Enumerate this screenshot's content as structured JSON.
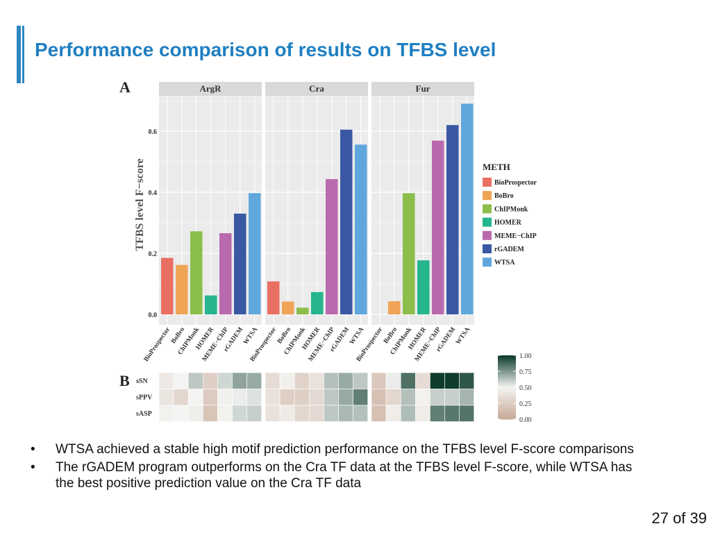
{
  "slide": {
    "title": "Performance comparison of results on TFBS level",
    "page_number": "27 of 39",
    "bullets": [
      "WTSA achieved a stable high motif prediction performance on the TFBS level F-score comparisons",
      "The rGADEM program outperforms on the Cra TF data at the TFBS level F-score, while WTSA has the best positive prediction value on the Cra TF data"
    ]
  },
  "colors": {
    "accent": "#2e86c1",
    "title": "#1f7fc2",
    "panel_bg": "#ebebeb",
    "strip_bg": "#d9d9d9",
    "grid": "#ffffff",
    "heat_low": "#c8aa98",
    "heat_mid": "#f4f4f2",
    "heat_high": "#0f3d2c"
  },
  "chart_data": [
    {
      "type": "bar",
      "panel_label": "A",
      "ylabel": "TFBS level F−score",
      "ylim": [
        0,
        0.72
      ],
      "yticks": [
        0.0,
        0.2,
        0.4,
        0.6
      ],
      "ytick_labels": [
        "0.0",
        "0.2",
        "0.4",
        "0.6"
      ],
      "categories": [
        "BioProspector",
        "BoBro",
        "ChIPMonk",
        "HOMER",
        "MEME−ChIP",
        "rGADEM",
        "WTSA"
      ],
      "category_colors": [
        "#ea6f63",
        "#efa456",
        "#8bbe4b",
        "#26b58c",
        "#b96aae",
        "#3a58a3",
        "#5fa7dd"
      ],
      "legend_title": "METH",
      "legend": [
        "BioProspector",
        "BoBro",
        "ChIPMonk",
        "HOMER",
        "MEME−ChIP",
        "rGADEM",
        "WTSA"
      ],
      "facets": [
        {
          "name": "ArgR",
          "values": [
            0.185,
            0.162,
            0.272,
            0.062,
            0.266,
            0.33,
            0.397
          ]
        },
        {
          "name": "Cra",
          "values": [
            0.108,
            0.042,
            0.022,
            0.073,
            0.443,
            0.605,
            0.556
          ]
        },
        {
          "name": "Fur",
          "values": [
            0.0,
            0.043,
            0.397,
            0.177,
            0.569,
            0.62,
            0.69
          ]
        }
      ]
    },
    {
      "type": "heatmap",
      "panel_label": "B",
      "rows": [
        "sSN",
        "sPPV",
        "sASP"
      ],
      "columns": [
        "BioProspector",
        "BoBro",
        "ChIPMonk",
        "HOMER",
        "MEME−ChIP",
        "rGADEM",
        "WTSA"
      ],
      "facets": [
        {
          "name": "ArgR",
          "values": [
            [
              0.42,
              0.5,
              0.62,
              0.25,
              0.58,
              0.72,
              0.7
            ],
            [
              0.4,
              0.3,
              0.5,
              0.22,
              0.47,
              0.52,
              0.55
            ],
            [
              0.48,
              0.5,
              0.46,
              0.18,
              0.48,
              0.58,
              0.6
            ]
          ]
        },
        {
          "name": "Cra",
          "values": [
            [
              0.34,
              0.47,
              0.28,
              0.38,
              0.64,
              0.7,
              0.62
            ],
            [
              0.37,
              0.25,
              0.25,
              0.32,
              0.62,
              0.7,
              0.82
            ],
            [
              0.38,
              0.44,
              0.3,
              0.32,
              0.62,
              0.66,
              0.64
            ]
          ]
        },
        {
          "name": "Fur",
          "values": [
            [
              0.2,
              0.52,
              0.86,
              0.34,
              1.0,
              1.0,
              0.93
            ],
            [
              0.15,
              0.3,
              0.64,
              0.48,
              0.6,
              0.6,
              0.67
            ],
            [
              0.15,
              0.45,
              0.65,
              0.45,
              0.82,
              0.84,
              0.85
            ]
          ]
        }
      ],
      "colorbar_ticks": [
        "1.00",
        "0.75",
        "0.50",
        "0.25",
        "0.00"
      ],
      "colorbar_range": [
        0,
        1
      ]
    }
  ]
}
